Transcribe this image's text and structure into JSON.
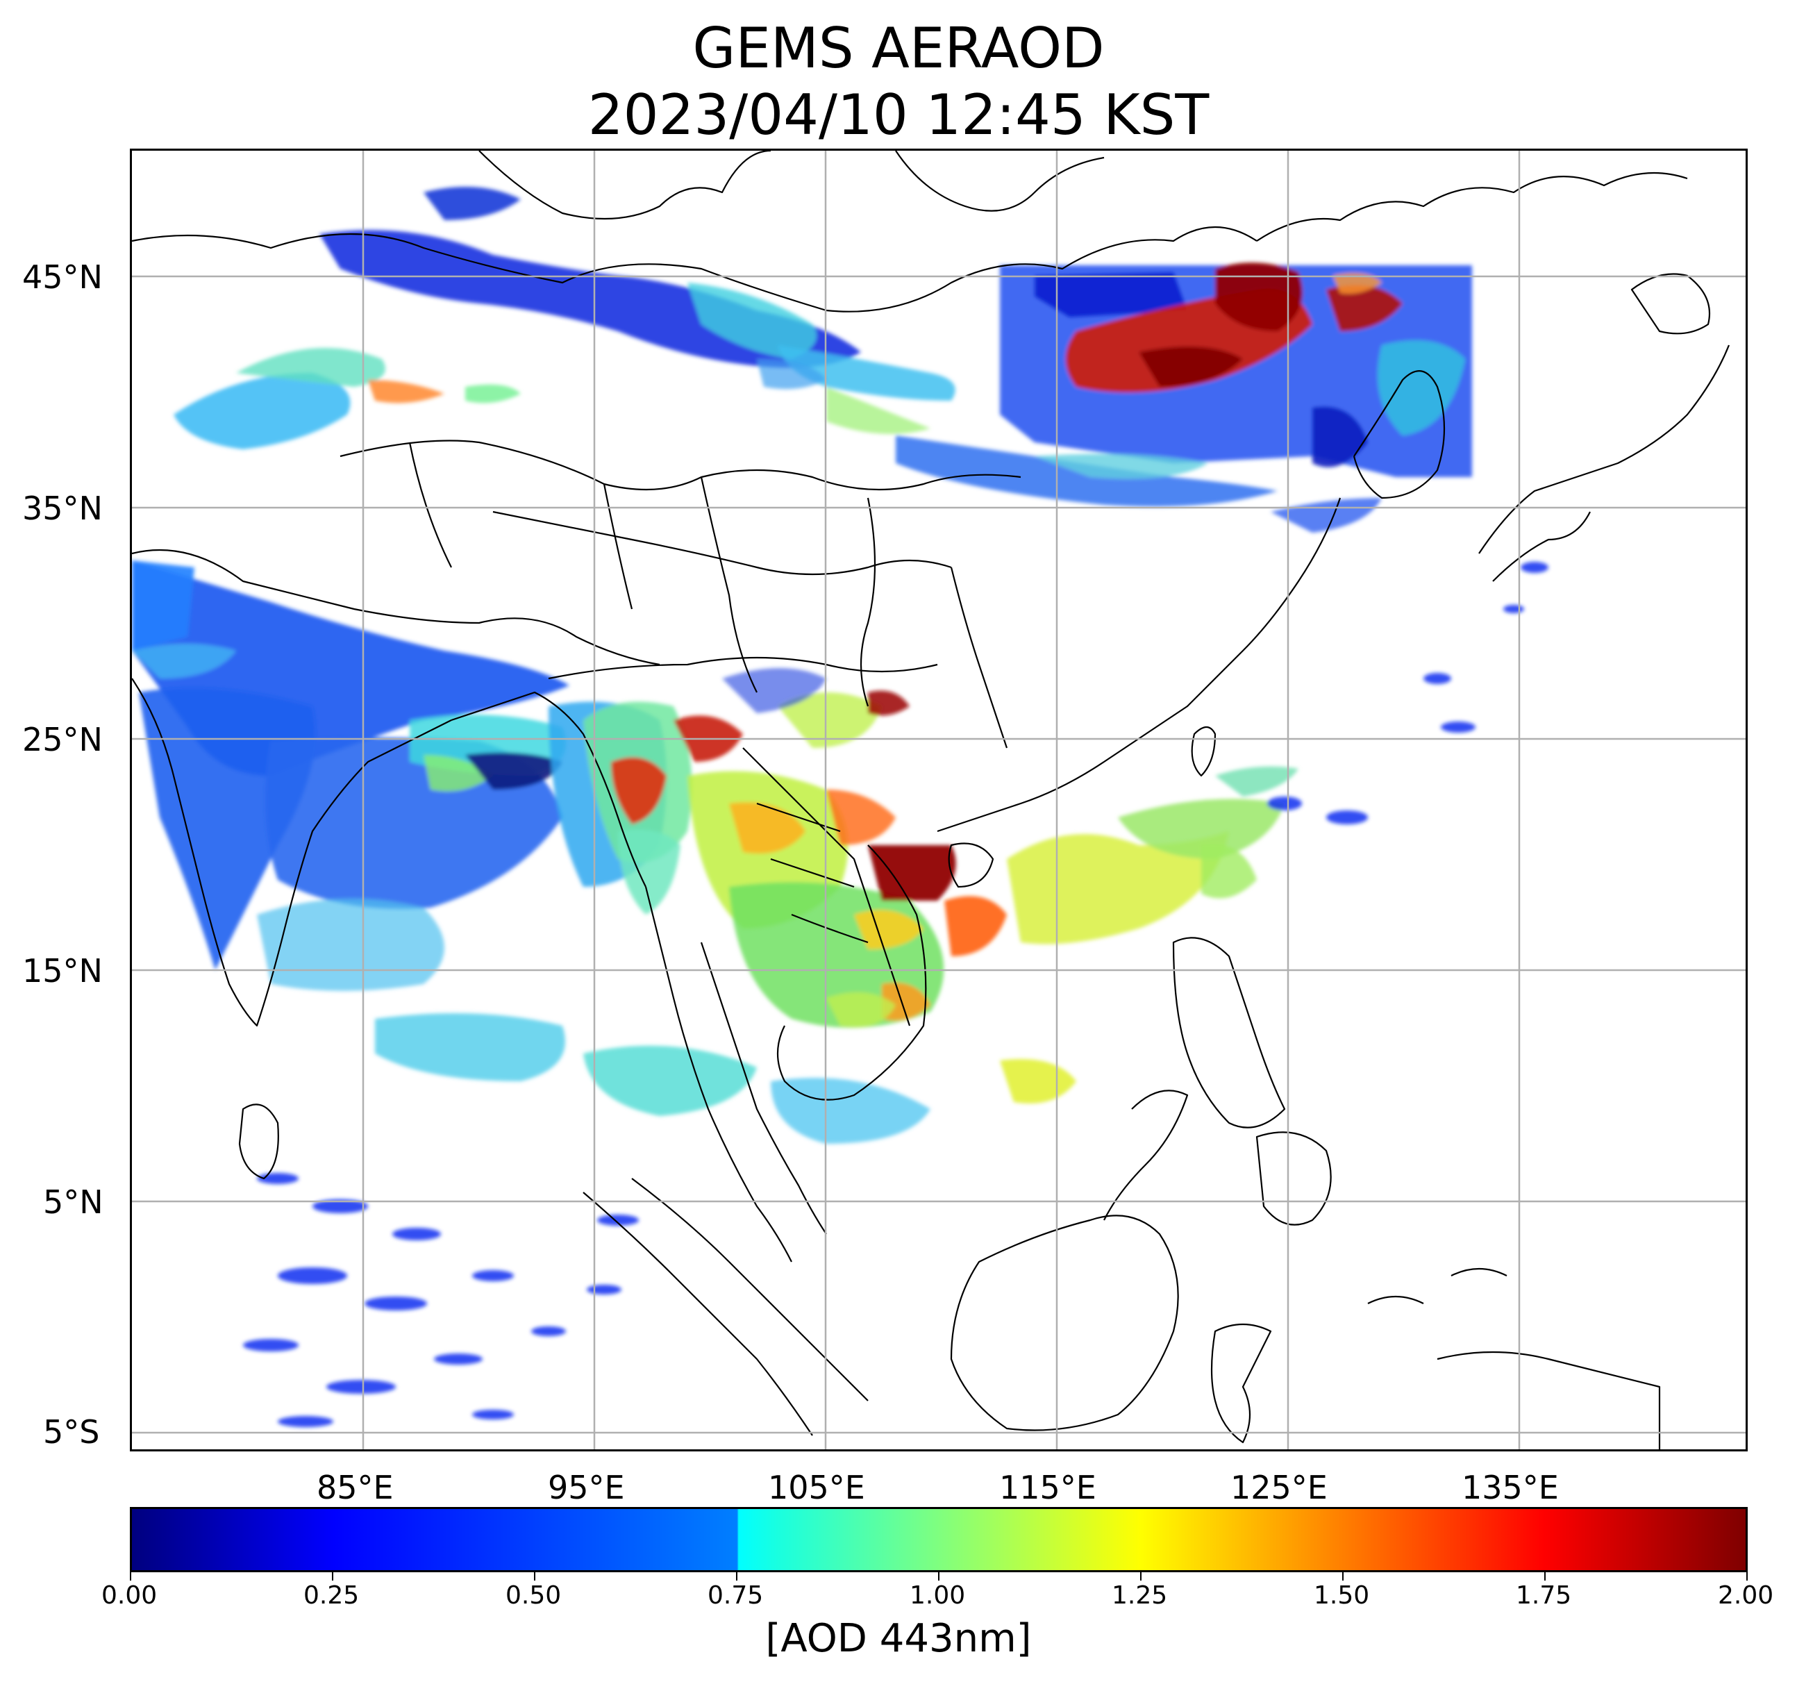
{
  "title": {
    "line1": "GEMS AERAOD",
    "line2": "2023/04/10 12:45 KST"
  },
  "map": {
    "lat_labels": [
      "45°N",
      "35°N",
      "25°N",
      "15°N",
      "5°N",
      "5°S"
    ],
    "lon_labels": [
      "85°E",
      "95°E",
      "105°E",
      "115°E",
      "125°E",
      "135°E"
    ]
  },
  "colorbar": {
    "tick_labels": [
      "0.00",
      "0.25",
      "0.50",
      "0.75",
      "1.00",
      "1.25",
      "1.50",
      "1.75",
      "2.00"
    ],
    "label": "[AOD 443nm]",
    "min": 0,
    "max": 2,
    "colormap": "jet"
  }
}
